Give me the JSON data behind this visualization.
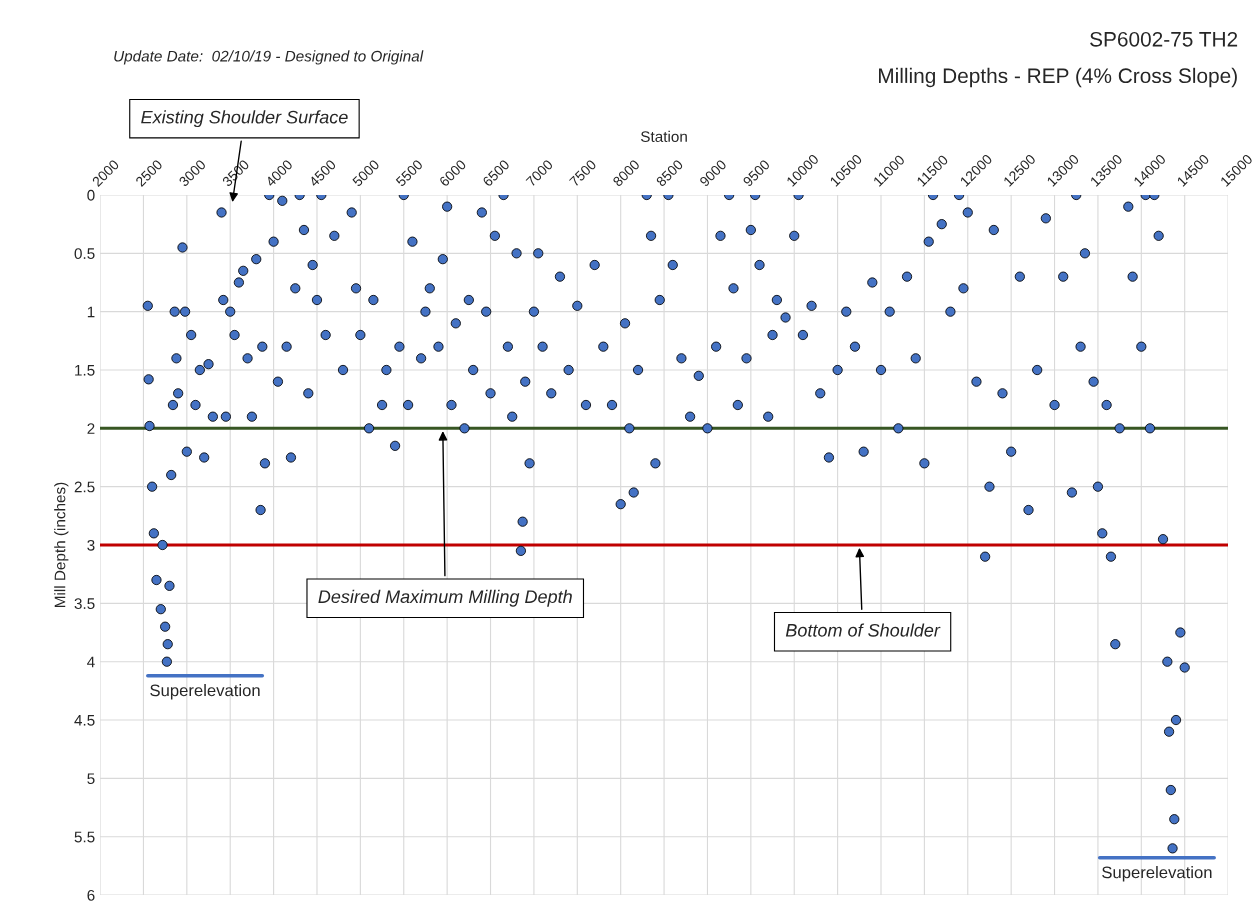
{
  "chart_data": {
    "type": "scatter",
    "title": "SP6002-75 TH2",
    "subtitle": "Milling Depths - REP (4% Cross Slope)",
    "xlabel": "Station",
    "ylabel": "Mill Depth (inches)",
    "xlim": [
      2000,
      15000
    ],
    "xticks": [
      2000,
      2500,
      3000,
      3500,
      4000,
      4500,
      5000,
      5500,
      6000,
      6500,
      7000,
      7500,
      8000,
      8500,
      9000,
      9500,
      10000,
      10500,
      11000,
      11500,
      12000,
      12500,
      13000,
      13500,
      14000,
      14500,
      15000
    ],
    "ylim": [
      6,
      0
    ],
    "yticks": [
      0,
      0.5,
      1,
      1.5,
      2,
      2.5,
      3,
      3.5,
      4,
      4.5,
      5,
      5.5,
      6
    ],
    "grid": true,
    "series": [
      {
        "marker": "circle",
        "color": "#4472c4",
        "x": [
          2550,
          2560,
          2570,
          2600,
          2620,
          2650,
          2700,
          2720,
          2750,
          2770,
          2780,
          2800,
          2820,
          2840,
          2860,
          2880,
          2900,
          2950,
          2980,
          3000,
          3050,
          3100,
          3150,
          3200,
          3250,
          3300,
          3400,
          3420,
          3450,
          3500,
          3550,
          3600,
          3650,
          3700,
          3750,
          3800,
          3850,
          3870,
          3900,
          3950,
          4000,
          4050,
          4100,
          4150,
          4200,
          4250,
          4300,
          4350,
          4400,
          4450,
          4500,
          4550,
          4600,
          4700,
          4800,
          4900,
          4950,
          5000,
          5100,
          5150,
          5250,
          5300,
          5400,
          5450,
          5500,
          5550,
          5600,
          5700,
          5750,
          5800,
          5900,
          5950,
          6000,
          6050,
          6100,
          6200,
          6250,
          6300,
          6400,
          6450,
          6500,
          6550,
          6650,
          6700,
          6750,
          6800,
          6850,
          6870,
          6900,
          6950,
          7000,
          7050,
          7100,
          7200,
          7300,
          7400,
          7500,
          7600,
          7700,
          7800,
          7900,
          8000,
          8050,
          8100,
          8150,
          8200,
          8300,
          8350,
          8400,
          8450,
          8550,
          8600,
          8700,
          8800,
          8900,
          9000,
          9100,
          9150,
          9250,
          9300,
          9350,
          9450,
          9500,
          9550,
          9600,
          9700,
          9750,
          9800,
          9900,
          10000,
          10050,
          10100,
          10200,
          10300,
          10400,
          10500,
          10600,
          10700,
          10800,
          10900,
          11000,
          11100,
          11200,
          11300,
          11400,
          11500,
          11550,
          11600,
          11700,
          11800,
          11900,
          11950,
          12000,
          12100,
          12200,
          12250,
          12300,
          12400,
          12500,
          12600,
          12700,
          12800,
          12900,
          13000,
          13100,
          13200,
          13250,
          13300,
          13350,
          13450,
          13500,
          13550,
          13600,
          13650,
          13700,
          13750,
          13850,
          13900,
          14000,
          14050,
          14100,
          14150,
          14200,
          14250,
          14300,
          14320,
          14340,
          14360,
          14380,
          14400,
          14450,
          14500
        ],
        "values": [
          0.95,
          1.58,
          1.98,
          2.5,
          2.9,
          3.3,
          3.55,
          3.0,
          3.7,
          4.0,
          3.85,
          3.35,
          2.4,
          1.8,
          1.0,
          1.4,
          1.7,
          0.45,
          1.0,
          2.2,
          1.2,
          1.8,
          1.5,
          2.25,
          1.45,
          1.9,
          0.15,
          0.9,
          1.9,
          1.0,
          1.2,
          0.75,
          0.65,
          1.4,
          1.9,
          0.55,
          2.7,
          1.3,
          2.3,
          0.0,
          0.4,
          1.6,
          0.05,
          1.3,
          2.25,
          0.8,
          0.0,
          0.3,
          1.7,
          0.6,
          0.9,
          0.0,
          1.2,
          0.35,
          1.5,
          0.15,
          0.8,
          1.2,
          2.0,
          0.9,
          1.8,
          1.5,
          2.15,
          1.3,
          0.0,
          1.8,
          0.4,
          1.4,
          1.0,
          0.8,
          1.3,
          0.55,
          0.1,
          1.8,
          1.1,
          2.0,
          0.9,
          1.5,
          0.15,
          1.0,
          1.7,
          0.35,
          0.0,
          1.3,
          1.9,
          0.5,
          3.05,
          2.8,
          1.6,
          2.3,
          1.0,
          0.5,
          1.3,
          1.7,
          0.7,
          1.5,
          0.95,
          1.8,
          0.6,
          1.3,
          1.8,
          2.65,
          1.1,
          2.0,
          2.55,
          1.5,
          0.0,
          0.35,
          2.3,
          0.9,
          0.0,
          0.6,
          1.4,
          1.9,
          1.55,
          2.0,
          1.3,
          0.35,
          0.0,
          0.8,
          1.8,
          1.4,
          0.3,
          0.0,
          0.6,
          1.9,
          1.2,
          0.9,
          1.05,
          0.35,
          0.0,
          1.2,
          0.95,
          1.7,
          2.25,
          1.5,
          1.0,
          1.3,
          2.2,
          0.75,
          1.5,
          1.0,
          2.0,
          0.7,
          1.4,
          2.3,
          0.4,
          0.0,
          0.25,
          1.0,
          0.0,
          0.8,
          0.15,
          1.6,
          3.1,
          2.5,
          0.3,
          1.7,
          2.2,
          0.7,
          2.7,
          1.5,
          0.2,
          1.8,
          0.7,
          2.55,
          0.0,
          1.3,
          0.5,
          1.6,
          2.5,
          2.9,
          1.8,
          3.1,
          3.85,
          2.0,
          0.1,
          0.7,
          1.3,
          0.0,
          2.0,
          0.0,
          0.35,
          2.95,
          4.0,
          4.6,
          5.1,
          5.6,
          5.35,
          4.5,
          3.75,
          4.05
        ]
      },
      {
        "type": "line",
        "name": "Superelevation",
        "color": "#4472c4",
        "x": [
          2550,
          3870
        ],
        "values": [
          4.12,
          4.12
        ]
      },
      {
        "type": "line",
        "name": "Superelevation",
        "color": "#4472c4",
        "x": [
          13520,
          14840
        ],
        "values": [
          5.68,
          5.68
        ]
      }
    ],
    "ref_lines": [
      {
        "axis": "y",
        "value": 2,
        "color": "#375623"
      },
      {
        "axis": "y",
        "value": 3,
        "color": "#c00000"
      }
    ],
    "annotations": [
      "Update Date:  02/10/19 - Designed to Original",
      "Existing Shoulder Surface",
      {
        "text": "Desired Maximum Milling Depth",
        "x": 5950,
        "y": 2
      },
      {
        "text": "Bottom of Shoulder",
        "x": 10750,
        "y": 3
      }
    ]
  }
}
